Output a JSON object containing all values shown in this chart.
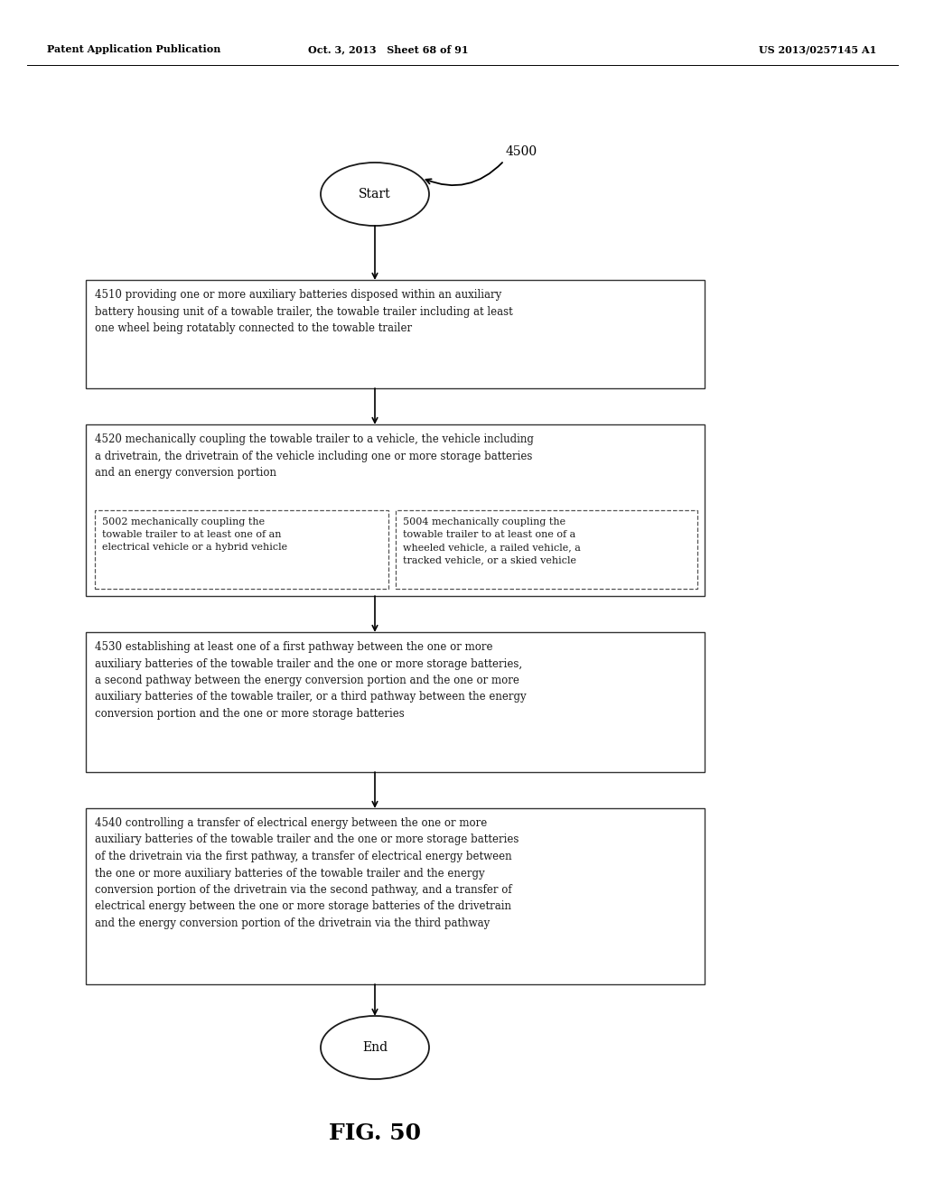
{
  "header_left": "Patent Application Publication",
  "header_mid": "Oct. 3, 2013   Sheet 68 of 91",
  "header_right": "US 2013/0257145 A1",
  "figure_label": "FIG. 50",
  "diagram_label": "4500",
  "start_label": "Start",
  "end_label": "End",
  "box1_text": "4510 providing one or more auxiliary batteries disposed within an auxiliary\nbattery housing unit of a towable trailer, the towable trailer including at least\none wheel being rotatably connected to the towable trailer",
  "box2_top_text": "4520 mechanically coupling the towable trailer to a vehicle, the vehicle including\na drivetrain, the drivetrain of the vehicle including one or more storage batteries\nand an energy conversion portion",
  "box2a_text": "5002 mechanically coupling the\ntowable trailer to at least one of an\nelectrical vehicle or a hybrid vehicle",
  "box2b_text": "5004 mechanically coupling the\ntowable trailer to at least one of a\nwheeled vehicle, a railed vehicle, a\ntracked vehicle, or a skied vehicle",
  "box3_text": "4530 establishing at least one of a first pathway between the one or more\nauxiliary batteries of the towable trailer and the one or more storage batteries,\na second pathway between the energy conversion portion and the one or more\nauxiliary batteries of the towable trailer, or a third pathway between the energy\nconversion portion and the one or more storage batteries",
  "box4_text": "4540 controlling a transfer of electrical energy between the one or more\nauxiliary batteries of the towable trailer and the one or more storage batteries\nof the drivetrain via the first pathway, a transfer of electrical energy between\nthe one or more auxiliary batteries of the towable trailer and the energy\nconversion portion of the drivetrain via the second pathway, and a transfer of\nelectrical energy between the one or more storage batteries of the drivetrain\nand the energy conversion portion of the drivetrain via the third pathway",
  "bg_color": "#ffffff",
  "text_color": "#1a1a1a",
  "box_edge_color": "#333333",
  "dashed_edge_color": "#555555"
}
